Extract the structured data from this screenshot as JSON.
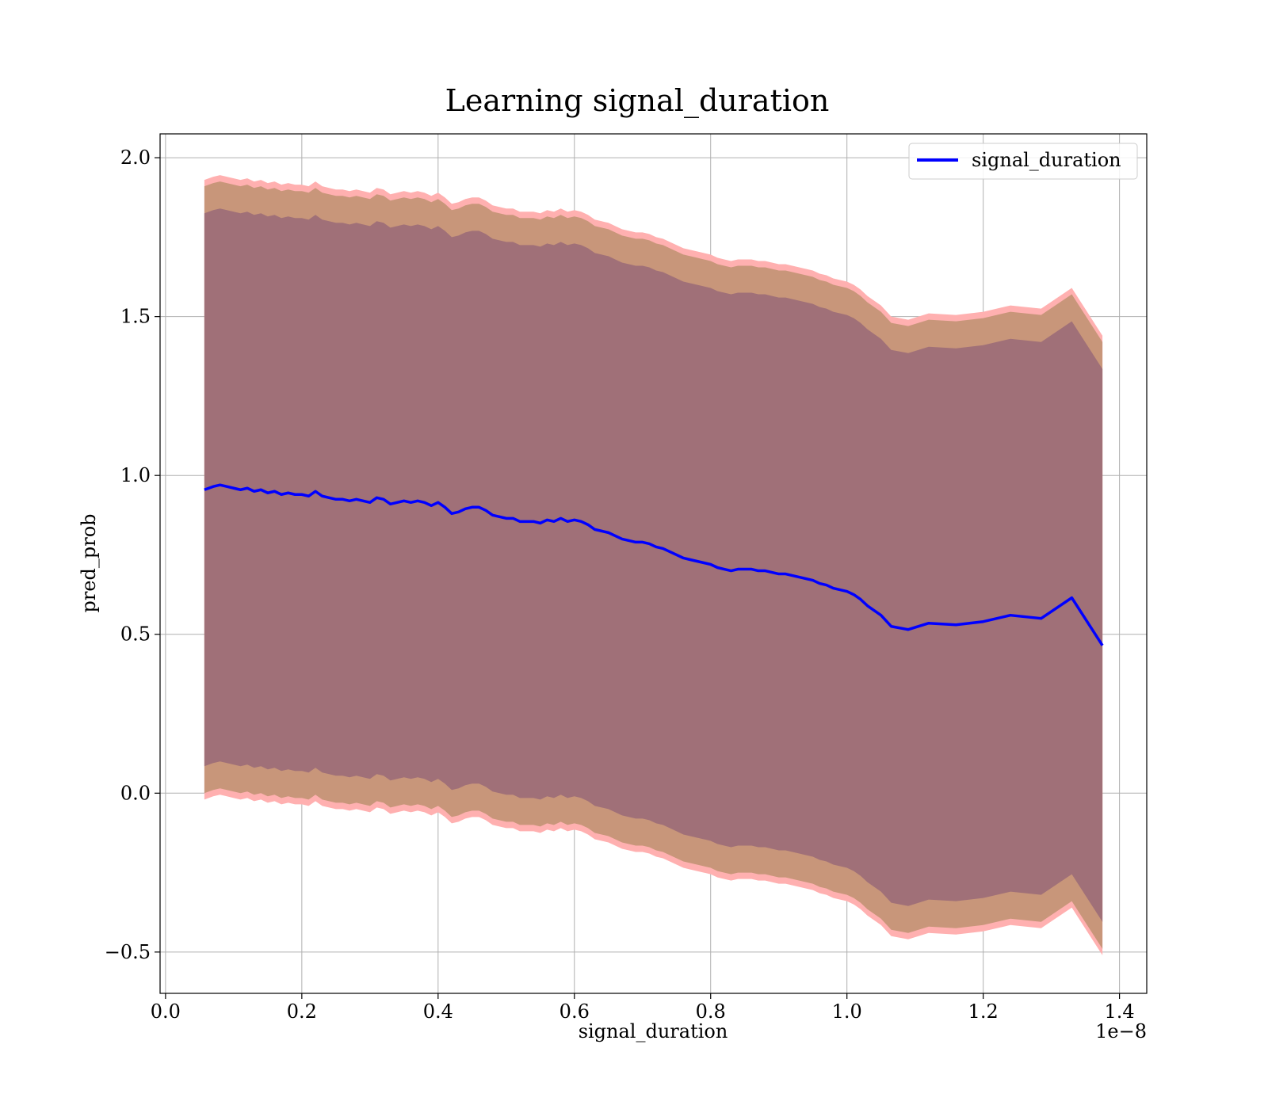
{
  "chart_data": {
    "type": "line",
    "title": "Learning signal_duration",
    "xlabel": "signal_duration",
    "ylabel": "pred_prob",
    "x_offset_label": "1e−8",
    "xlim": [
      -0.008,
      1.44
    ],
    "ylim": [
      -0.63,
      2.075
    ],
    "x_ticks": [
      0.0,
      0.2,
      0.4,
      0.6,
      0.8,
      1.0,
      1.2,
      1.4
    ],
    "x_tick_labels": [
      "0.0",
      "0.2",
      "0.4",
      "0.6",
      "0.8",
      "1.0",
      "1.2",
      "1.4"
    ],
    "y_ticks": [
      -0.5,
      0.0,
      0.5,
      1.0,
      1.5,
      2.0
    ],
    "y_tick_labels": [
      "−0.5",
      "0.0",
      "0.5",
      "1.0",
      "1.5",
      "2.0"
    ],
    "grid": true,
    "legend_position": "top-right",
    "series": [
      {
        "name": "signal_duration",
        "color": "#0000ff",
        "x": [
          0.057,
          0.07,
          0.08,
          0.09,
          0.1,
          0.11,
          0.12,
          0.13,
          0.14,
          0.15,
          0.16,
          0.17,
          0.18,
          0.19,
          0.2,
          0.21,
          0.22,
          0.23,
          0.24,
          0.25,
          0.26,
          0.27,
          0.28,
          0.29,
          0.3,
          0.31,
          0.32,
          0.33,
          0.34,
          0.35,
          0.36,
          0.37,
          0.38,
          0.39,
          0.4,
          0.41,
          0.42,
          0.43,
          0.44,
          0.45,
          0.46,
          0.47,
          0.48,
          0.49,
          0.5,
          0.51,
          0.52,
          0.53,
          0.54,
          0.55,
          0.56,
          0.57,
          0.58,
          0.59,
          0.6,
          0.61,
          0.62,
          0.63,
          0.64,
          0.65,
          0.66,
          0.67,
          0.68,
          0.69,
          0.7,
          0.71,
          0.72,
          0.73,
          0.74,
          0.75,
          0.76,
          0.77,
          0.78,
          0.79,
          0.8,
          0.81,
          0.82,
          0.83,
          0.84,
          0.85,
          0.86,
          0.87,
          0.88,
          0.89,
          0.9,
          0.91,
          0.92,
          0.93,
          0.94,
          0.95,
          0.96,
          0.97,
          0.98,
          0.99,
          1.0,
          1.01,
          1.02,
          1.03,
          1.04,
          1.05,
          1.065,
          1.09,
          1.12,
          1.16,
          1.2,
          1.24,
          1.285,
          1.33,
          1.375
        ],
        "values": [
          0.955,
          0.965,
          0.97,
          0.965,
          0.96,
          0.955,
          0.96,
          0.95,
          0.955,
          0.945,
          0.95,
          0.94,
          0.945,
          0.94,
          0.94,
          0.935,
          0.95,
          0.935,
          0.93,
          0.925,
          0.925,
          0.92,
          0.925,
          0.92,
          0.915,
          0.93,
          0.925,
          0.91,
          0.915,
          0.92,
          0.915,
          0.92,
          0.915,
          0.905,
          0.915,
          0.9,
          0.88,
          0.885,
          0.895,
          0.9,
          0.9,
          0.89,
          0.875,
          0.87,
          0.865,
          0.865,
          0.855,
          0.855,
          0.855,
          0.85,
          0.86,
          0.855,
          0.865,
          0.855,
          0.86,
          0.855,
          0.845,
          0.83,
          0.825,
          0.82,
          0.81,
          0.8,
          0.795,
          0.79,
          0.79,
          0.785,
          0.775,
          0.77,
          0.76,
          0.75,
          0.74,
          0.735,
          0.73,
          0.725,
          0.72,
          0.71,
          0.705,
          0.7,
          0.705,
          0.705,
          0.705,
          0.7,
          0.7,
          0.695,
          0.69,
          0.69,
          0.685,
          0.68,
          0.675,
          0.67,
          0.66,
          0.655,
          0.645,
          0.64,
          0.635,
          0.625,
          0.61,
          0.59,
          0.575,
          0.56,
          0.525,
          0.515,
          0.535,
          0.53,
          0.54,
          0.56,
          0.55,
          0.615,
          0.465
        ],
        "band_inner": [
          0.87,
          0.87,
          0.87,
          0.87,
          0.87,
          0.87,
          0.87,
          0.87,
          0.87,
          0.87,
          0.87,
          0.87,
          0.87,
          0.87,
          0.87,
          0.87,
          0.87,
          0.87,
          0.87,
          0.87,
          0.87,
          0.87,
          0.87,
          0.87,
          0.87,
          0.87,
          0.87,
          0.87,
          0.87,
          0.87,
          0.87,
          0.87,
          0.87,
          0.87,
          0.87,
          0.87,
          0.87,
          0.87,
          0.87,
          0.87,
          0.87,
          0.87,
          0.87,
          0.87,
          0.87,
          0.87,
          0.87,
          0.87,
          0.87,
          0.87,
          0.87,
          0.87,
          0.87,
          0.87,
          0.87,
          0.87,
          0.87,
          0.87,
          0.87,
          0.87,
          0.87,
          0.87,
          0.87,
          0.87,
          0.87,
          0.87,
          0.87,
          0.87,
          0.87,
          0.87,
          0.87,
          0.87,
          0.87,
          0.87,
          0.87,
          0.87,
          0.87,
          0.87,
          0.87,
          0.87,
          0.87,
          0.87,
          0.87,
          0.87,
          0.87,
          0.87,
          0.87,
          0.87,
          0.87,
          0.87,
          0.87,
          0.87,
          0.87,
          0.87,
          0.87,
          0.87,
          0.87,
          0.87,
          0.87,
          0.87,
          0.87,
          0.87,
          0.87,
          0.87,
          0.87,
          0.87,
          0.87,
          0.87,
          0.87
        ],
        "band_mid": [
          0.955,
          0.955,
          0.955,
          0.955,
          0.955,
          0.955,
          0.955,
          0.955,
          0.955,
          0.955,
          0.955,
          0.955,
          0.955,
          0.955,
          0.955,
          0.955,
          0.955,
          0.955,
          0.955,
          0.955,
          0.955,
          0.955,
          0.955,
          0.955,
          0.955,
          0.955,
          0.955,
          0.955,
          0.955,
          0.955,
          0.955,
          0.955,
          0.955,
          0.955,
          0.955,
          0.955,
          0.955,
          0.955,
          0.955,
          0.955,
          0.955,
          0.955,
          0.955,
          0.955,
          0.955,
          0.955,
          0.955,
          0.955,
          0.955,
          0.955,
          0.955,
          0.955,
          0.955,
          0.955,
          0.955,
          0.955,
          0.955,
          0.955,
          0.955,
          0.955,
          0.955,
          0.955,
          0.955,
          0.955,
          0.955,
          0.955,
          0.955,
          0.955,
          0.955,
          0.955,
          0.955,
          0.955,
          0.955,
          0.955,
          0.955,
          0.955,
          0.955,
          0.955,
          0.955,
          0.955,
          0.955,
          0.955,
          0.955,
          0.955,
          0.955,
          0.955,
          0.955,
          0.955,
          0.955,
          0.955,
          0.955,
          0.955,
          0.955,
          0.955,
          0.955,
          0.955,
          0.955,
          0.955,
          0.955,
          0.955,
          0.955,
          0.955,
          0.955,
          0.955,
          0.955,
          0.955,
          0.955,
          0.955,
          0.955
        ],
        "band_outer": [
          0.975,
          0.975,
          0.975,
          0.975,
          0.975,
          0.975,
          0.975,
          0.975,
          0.975,
          0.975,
          0.975,
          0.975,
          0.975,
          0.975,
          0.975,
          0.975,
          0.975,
          0.975,
          0.975,
          0.975,
          0.975,
          0.975,
          0.975,
          0.975,
          0.975,
          0.975,
          0.975,
          0.975,
          0.975,
          0.975,
          0.975,
          0.975,
          0.975,
          0.975,
          0.975,
          0.975,
          0.975,
          0.975,
          0.975,
          0.975,
          0.975,
          0.975,
          0.975,
          0.975,
          0.975,
          0.975,
          0.975,
          0.975,
          0.975,
          0.975,
          0.975,
          0.975,
          0.975,
          0.975,
          0.975,
          0.975,
          0.975,
          0.975,
          0.975,
          0.975,
          0.975,
          0.975,
          0.975,
          0.975,
          0.975,
          0.975,
          0.975,
          0.975,
          0.975,
          0.975,
          0.975,
          0.975,
          0.975,
          0.975,
          0.975,
          0.975,
          0.975,
          0.975,
          0.975,
          0.975,
          0.975,
          0.975,
          0.975,
          0.975,
          0.975,
          0.975,
          0.975,
          0.975,
          0.975,
          0.975,
          0.975,
          0.975,
          0.975,
          0.975,
          0.975,
          0.975,
          0.975,
          0.975,
          0.975,
          0.975,
          0.975,
          0.975,
          0.975,
          0.975,
          0.975,
          0.975,
          0.975,
          0.975,
          0.975
        ]
      }
    ],
    "band_colors": {
      "outer": "#ffb0b0",
      "mid": "#c8967a",
      "inner": "#a07078"
    }
  }
}
